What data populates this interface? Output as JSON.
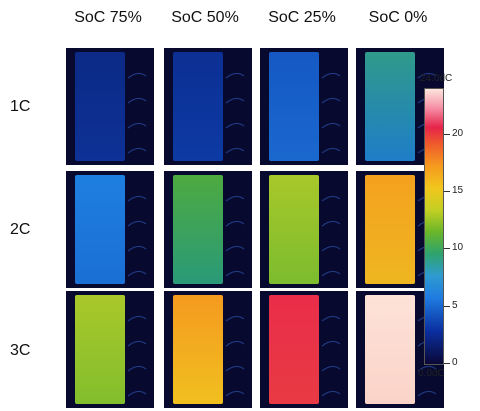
{
  "columns": [
    "SoC 75%",
    "SoC 50%",
    "SoC 25%",
    "SoC 0%"
  ],
  "rows": [
    "1C",
    "2C",
    "3C"
  ],
  "cells": [
    [
      {
        "top": "#0c2a86",
        "bottom": "#0d3196"
      },
      {
        "top": "#0c2f93",
        "bottom": "#0d3aa3"
      },
      {
        "top": "#1558c3",
        "bottom": "#1a68cf"
      },
      {
        "top": "#2f9a8a",
        "bottom": "#1e7dc8"
      }
    ],
    [
      {
        "top": "#1e7fe0",
        "bottom": "#1b6fd4"
      },
      {
        "top": "#4daa40",
        "bottom": "#2a9a78"
      },
      {
        "top": "#a8c82a",
        "bottom": "#7cbc2e"
      },
      {
        "top": "#f4a11e",
        "bottom": "#efb621"
      }
    ],
    [
      {
        "top": "#a9c829",
        "bottom": "#82be2d"
      },
      {
        "top": "#f59a1f",
        "bottom": "#f0c01f"
      },
      {
        "top": "#ea2d49",
        "bottom": "#e83a44"
      },
      {
        "top": "#fde2d8",
        "bottom": "#fbd3c8"
      }
    ]
  ],
  "colorbar": {
    "max_label": "24.0dC",
    "min_label": "0.0dC",
    "ticks": [
      "20",
      "15",
      "10",
      "5",
      "0"
    ],
    "tick_values": [
      20,
      15,
      10,
      5,
      0
    ],
    "range": [
      0,
      24
    ]
  }
}
